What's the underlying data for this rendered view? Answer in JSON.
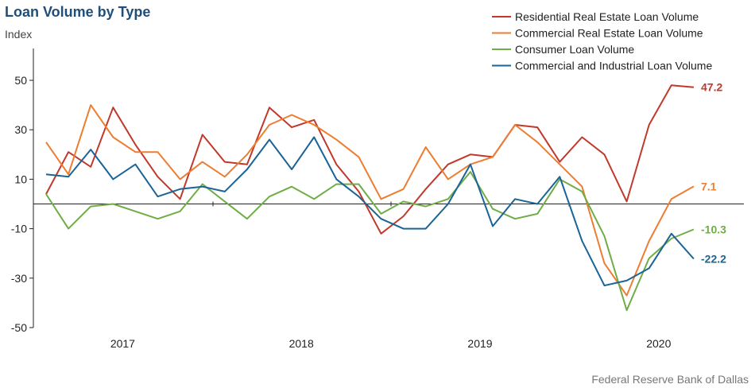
{
  "title": "Loan Volume by Type",
  "subtitle": "Index",
  "source": "Federal Reserve Bank of Dallas",
  "chart_data": {
    "type": "line",
    "ylim": [
      -50,
      50
    ],
    "yticks": [
      50,
      30,
      10,
      -10,
      -30,
      -50
    ],
    "ytick_labels": [
      "50",
      "30",
      "10",
      "-10",
      "-30",
      "-50"
    ],
    "xlim": [
      0,
      30
    ],
    "xticks": [
      {
        "label": "2017",
        "pos": 4
      },
      {
        "label": "2018",
        "pos": 12
      },
      {
        "label": "2019",
        "pos": 20
      },
      {
        "label": "2020",
        "pos": 28
      }
    ],
    "grid": false,
    "legend": "top-right",
    "series": [
      {
        "name": "Residential Real Estate Loan Volume",
        "color": "#c0392b",
        "end_label": "47.2",
        "values": [
          4,
          21,
          15,
          39,
          24,
          11,
          2,
          28,
          17,
          16,
          39,
          31,
          34,
          16,
          5,
          -12,
          -5,
          6,
          16,
          20,
          19,
          32,
          31,
          17,
          27,
          20,
          1,
          32,
          48,
          47.2
        ]
      },
      {
        "name": "Commercial Real Estate Loan Volume",
        "color": "#ed7d31",
        "end_label": "7.1",
        "values": [
          25,
          12,
          40,
          27,
          21,
          21,
          10,
          17,
          11,
          20,
          32,
          36,
          32,
          26,
          19,
          2,
          6,
          23,
          10,
          16,
          19,
          32,
          25,
          16,
          7,
          -24,
          -37,
          -15,
          2,
          7.1
        ]
      },
      {
        "name": "Consumer Loan Volume",
        "color": "#70ad47",
        "end_label": "-10.3",
        "values": [
          4,
          -10,
          -1,
          0,
          -3,
          -6,
          -3,
          8,
          1,
          -6,
          3,
          7,
          2,
          8,
          8,
          -4,
          1,
          -1,
          2,
          13,
          -2,
          -6,
          -4,
          10,
          5,
          -13,
          -43,
          -22,
          -14,
          -10.3
        ]
      },
      {
        "name": "Commercial and Industrial Loan Volume",
        "color": "#1a6496",
        "end_label": "-22.2",
        "values": [
          12,
          11,
          22,
          10,
          16,
          3,
          6,
          7,
          5,
          14,
          26,
          14,
          27,
          10,
          3,
          -6,
          -10,
          -10,
          0,
          16,
          -9,
          2,
          0,
          11,
          -15,
          -33,
          -31,
          -26,
          -12,
          -22.2
        ]
      }
    ]
  }
}
